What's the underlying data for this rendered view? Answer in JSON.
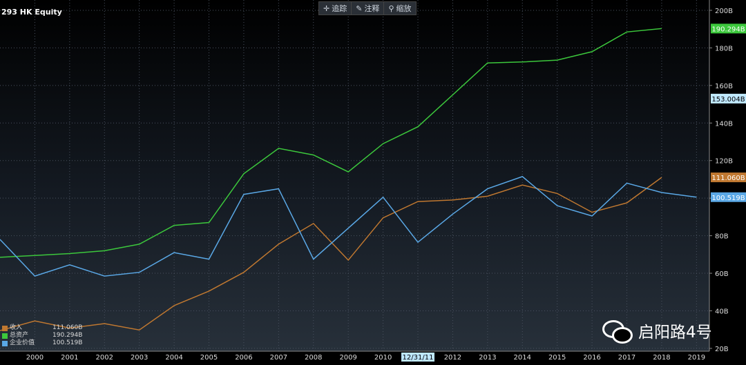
{
  "title": "293 HK Equity",
  "toolbar": {
    "track": "追踪",
    "track_icon": "crosshair-icon",
    "annotate": "注释",
    "annotate_icon": "pencil-icon",
    "zoom": "缩放",
    "zoom_icon": "magnifier-icon"
  },
  "cursor_date": "12/31/11",
  "colors": {
    "revenue": "#c07830",
    "total_assets": "#3cc83c",
    "enterprise_value": "#5aa8e6",
    "grid": "#4a5260"
  },
  "legend": [
    {
      "name": "收入",
      "value": "111.060B"
    },
    {
      "name": "总资产",
      "value": "190.294B"
    },
    {
      "name": "企业价值",
      "value": "100.519B"
    }
  ],
  "watermark": {
    "text": "启阳路4号",
    "icon": "wechat-icon"
  },
  "chart_data": {
    "type": "line",
    "x": [
      1999,
      2000,
      2001,
      2002,
      2003,
      2004,
      2005,
      2006,
      2007,
      2008,
      2009,
      2010,
      2011,
      2012,
      2013,
      2014,
      2015,
      2016,
      2017,
      2018,
      2019
    ],
    "x_tick_labels": [
      "2000",
      "2001",
      "2002",
      "2003",
      "2004",
      "2005",
      "2006",
      "2007",
      "2008",
      "2009",
      "2010",
      "2011",
      "2012",
      "2013",
      "2014",
      "2015",
      "2016",
      "2017",
      "2018",
      "2019"
    ],
    "y_tick_labels": [
      "20B",
      "40B",
      "60B",
      "80B",
      "100B",
      "120B",
      "140B",
      "160B",
      "180B",
      "200B"
    ],
    "ylim": [
      20,
      200
    ],
    "xlim": [
      1999,
      2019.3
    ],
    "grid": true,
    "legend_position": "bottom-left",
    "series": [
      {
        "name": "收入",
        "values": [
          29.5,
          34.6,
          30.8,
          33.2,
          29.8,
          42.8,
          50.5,
          60.5,
          75.5,
          86.5,
          67.0,
          89.5,
          98.2,
          99.0,
          101.0,
          107.0,
          102.5,
          92.5,
          97.5,
          111.06,
          null
        ],
        "last_label": "111.060B"
      },
      {
        "name": "总资产",
        "values": [
          68.5,
          69.5,
          70.5,
          72.0,
          75.5,
          85.5,
          87.0,
          113.0,
          126.5,
          123.0,
          114.0,
          129.0,
          138.0,
          155.0,
          172.0,
          172.5,
          173.5,
          178.0,
          188.5,
          190.294,
          null
        ],
        "last_label": "190.294B"
      },
      {
        "name": "企业价值",
        "values": [
          78.0,
          58.5,
          64.5,
          58.5,
          60.5,
          71.0,
          67.5,
          102.0,
          105.0,
          67.5,
          84.0,
          100.5,
          76.5,
          91.5,
          105.0,
          111.5,
          96.0,
          90.5,
          108.0,
          103.0,
          100.519
        ],
        "last_label": "100.519B"
      }
    ],
    "marker_label": "153.004B",
    "marker_value": 153.004
  }
}
